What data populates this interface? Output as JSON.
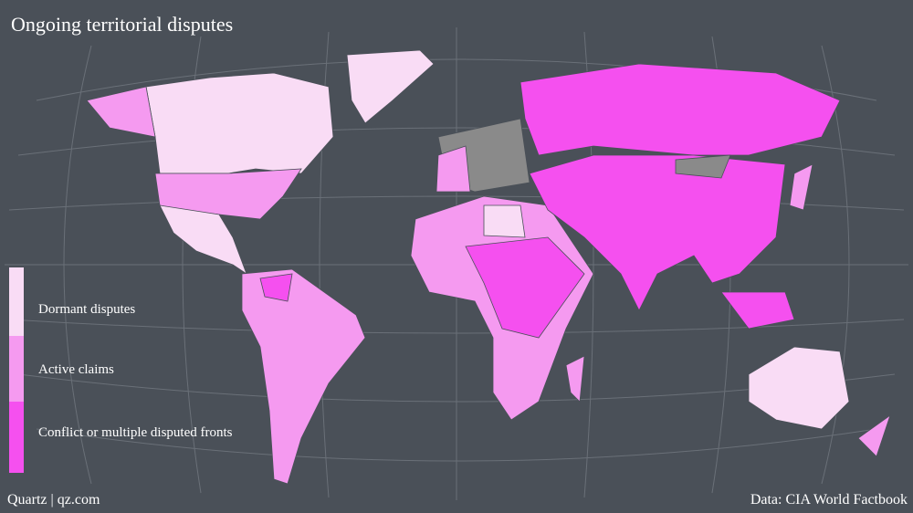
{
  "title": "Ongoing territorial disputes",
  "legend": [
    {
      "label": "Dormant disputes",
      "color": "#f9dcf5"
    },
    {
      "label": "Active claims",
      "color": "#f59af0"
    },
    {
      "label": "Conflict or multiple disputed fronts",
      "color": "#f550ef"
    }
  ],
  "footer": {
    "credit": "Quartz | qz.com",
    "source": "Data: CIA World Factbook"
  }
}
